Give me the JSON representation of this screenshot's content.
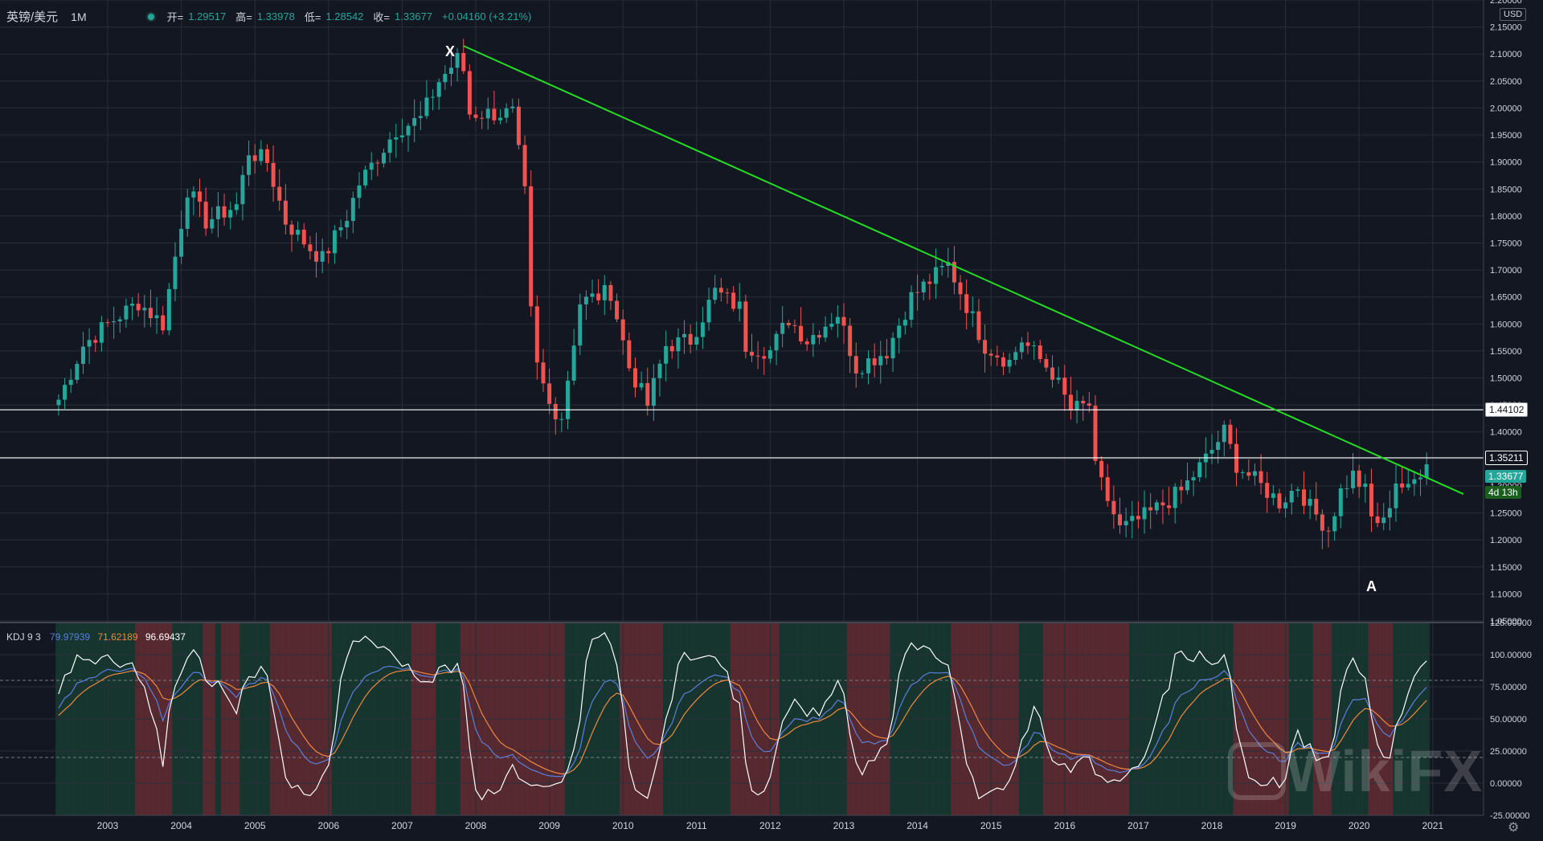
{
  "header": {
    "symbol": "英镑/美元",
    "timeframe": "1M",
    "open_label": "开=",
    "open": "1.29517",
    "high_label": "高=",
    "high": "1.33978",
    "low_label": "低=",
    "low": "1.28542",
    "close_label": "收=",
    "close": "1.33677",
    "change": "+0.04160 (+3.21%)"
  },
  "currency": "USD",
  "price_labels": {
    "line1": "1.44102",
    "line2": "1.35211",
    "last": "1.33677",
    "countdown": "4d 13h"
  },
  "kdj_legend": {
    "title": "KDJ 9 3",
    "k": "79.97939",
    "d": "71.62189",
    "j": "96.69437"
  },
  "annotations": {
    "x_mark": "X",
    "a_mark": "A"
  },
  "watermark": "WikiFX",
  "colors": {
    "up": "#26a69a",
    "down": "#ef5350",
    "trend": "#22dd22",
    "k": "#5b7fe0",
    "d": "#f0883e",
    "j": "#ffffff"
  },
  "chart_data": {
    "type": "candlestick",
    "price_axis": {
      "min": 1.05,
      "max": 2.2,
      "ticks": [
        "1.05000",
        "1.10000",
        "1.15000",
        "1.20000",
        "1.25000",
        "1.30000",
        "1.35000",
        "1.40000",
        "1.45000",
        "1.50000",
        "1.55000",
        "1.60000",
        "1.65000",
        "1.70000",
        "1.75000",
        "1.80000",
        "1.85000",
        "1.90000",
        "1.95000",
        "2.00000",
        "2.05000",
        "2.10000",
        "2.15000",
        "2.20000"
      ]
    },
    "kdj_axis": {
      "min": -25,
      "max": 125,
      "ticks": [
        "-25.00000",
        "0.00000",
        "25.00000",
        "50.00000",
        "75.00000",
        "100.00000",
        "125.00000"
      ],
      "dashed_levels": [
        20,
        80
      ]
    },
    "x_years": [
      "2003",
      "2004",
      "2005",
      "2006",
      "2007",
      "2008",
      "2009",
      "2010",
      "2011",
      "2012",
      "2013",
      "2014",
      "2015",
      "2016",
      "2017",
      "2018",
      "2019",
      "2020",
      "2021"
    ],
    "horizontal_levels": [
      1.44102,
      1.35211
    ],
    "trendline": {
      "from": [
        "2007-11",
        2.115
      ],
      "to": [
        "2021-06",
        1.285
      ]
    },
    "anchors": [
      [
        "2002-05",
        1.46
      ],
      [
        "2002-09",
        1.56
      ],
      [
        "2003-01",
        1.6
      ],
      [
        "2003-06",
        1.64
      ],
      [
        "2003-10",
        1.6
      ],
      [
        "2004-02",
        1.85
      ],
      [
        "2004-05",
        1.79
      ],
      [
        "2004-10",
        1.82
      ],
      [
        "2004-12",
        1.92
      ],
      [
        "2005-03",
        1.9
      ],
      [
        "2005-06",
        1.79
      ],
      [
        "2005-10",
        1.74
      ],
      [
        "2005-12",
        1.72
      ],
      [
        "2006-04",
        1.8
      ],
      [
        "2006-06",
        1.86
      ],
      [
        "2006-12",
        1.96
      ],
      [
        "2007-04",
        1.98
      ],
      [
        "2007-07",
        2.05
      ],
      [
        "2007-10",
        2.09
      ],
      [
        "2007-11",
        2.07
      ],
      [
        "2007-12",
        1.99
      ],
      [
        "2008-03",
        1.99
      ],
      [
        "2008-07",
        1.99
      ],
      [
        "2008-09",
        1.84
      ],
      [
        "2008-10",
        1.62
      ],
      [
        "2008-11",
        1.52
      ],
      [
        "2009-01",
        1.45
      ],
      [
        "2009-03",
        1.43
      ],
      [
        "2009-06",
        1.64
      ],
      [
        "2009-11",
        1.66
      ],
      [
        "2010-02",
        1.52
      ],
      [
        "2010-05",
        1.45
      ],
      [
        "2010-08",
        1.56
      ],
      [
        "2010-12",
        1.57
      ],
      [
        "2011-04",
        1.66
      ],
      [
        "2011-08",
        1.63
      ],
      [
        "2011-09",
        1.56
      ],
      [
        "2012-01",
        1.55
      ],
      [
        "2012-04",
        1.61
      ],
      [
        "2012-07",
        1.57
      ],
      [
        "2012-12",
        1.62
      ],
      [
        "2013-03",
        1.52
      ],
      [
        "2013-08",
        1.55
      ],
      [
        "2013-12",
        1.65
      ],
      [
        "2014-06",
        1.71
      ],
      [
        "2014-08",
        1.66
      ],
      [
        "2014-12",
        1.56
      ],
      [
        "2015-04",
        1.53
      ],
      [
        "2015-06",
        1.57
      ],
      [
        "2015-11",
        1.51
      ],
      [
        "2016-02",
        1.44
      ],
      [
        "2016-05",
        1.45
      ],
      [
        "2016-06",
        1.33
      ],
      [
        "2016-10",
        1.22
      ],
      [
        "2016-12",
        1.23
      ],
      [
        "2017-03",
        1.25
      ],
      [
        "2017-08",
        1.29
      ],
      [
        "2017-12",
        1.35
      ],
      [
        "2018-03",
        1.4
      ],
      [
        "2018-05",
        1.34
      ],
      [
        "2018-09",
        1.3
      ],
      [
        "2018-12",
        1.27
      ],
      [
        "2019-03",
        1.3
      ],
      [
        "2019-05",
        1.26
      ],
      [
        "2019-08",
        1.22
      ],
      [
        "2019-10",
        1.29
      ],
      [
        "2019-12",
        1.32
      ],
      [
        "2020-02",
        1.29
      ],
      [
        "2020-03",
        1.24
      ],
      [
        "2020-05",
        1.23
      ],
      [
        "2020-07",
        1.31
      ],
      [
        "2020-09",
        1.29
      ],
      [
        "2020-11",
        1.33
      ],
      [
        "2020-12",
        1.34
      ]
    ],
    "series": [
      {
        "name": "KDJ"
      }
    ]
  }
}
